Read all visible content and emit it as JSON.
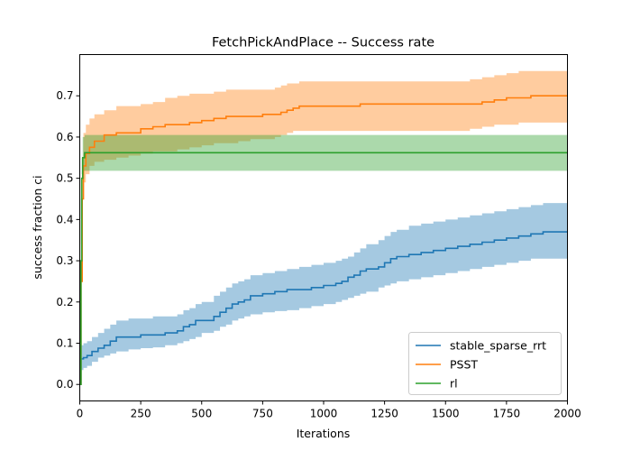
{
  "chart_data": {
    "type": "line",
    "title": "FetchPickAndPlace -- Success rate",
    "xlabel": "Iterations",
    "ylabel": "success fraction ci",
    "xlim": [
      0,
      2000
    ],
    "ylim": [
      -0.04,
      0.8
    ],
    "xticks": [
      0,
      250,
      500,
      750,
      1000,
      1250,
      1500,
      1750,
      2000
    ],
    "xtick_labels": [
      "0",
      "250",
      "500",
      "750",
      "1000",
      "1250",
      "1500",
      "1750",
      "2000"
    ],
    "yticks": [
      0.0,
      0.1,
      0.2,
      0.3,
      0.4,
      0.5,
      0.6,
      0.7
    ],
    "ytick_labels": [
      "0.0",
      "0.1",
      "0.2",
      "0.3",
      "0.4",
      "0.5",
      "0.6",
      "0.7"
    ],
    "grid": false,
    "legend_position": "lower-right",
    "series": [
      {
        "name": "stable_sparse_rrt",
        "color": "#1f77b4",
        "x": [
          0,
          5,
          15,
          30,
          50,
          75,
          100,
          125,
          150,
          200,
          250,
          300,
          350,
          400,
          425,
          450,
          475,
          500,
          550,
          575,
          600,
          625,
          650,
          675,
          700,
          750,
          800,
          850,
          900,
          950,
          1000,
          1050,
          1075,
          1100,
          1125,
          1150,
          1175,
          1225,
          1250,
          1275,
          1300,
          1350,
          1400,
          1450,
          1500,
          1550,
          1600,
          1650,
          1700,
          1750,
          1800,
          1850,
          1900,
          2000
        ],
        "y": [
          0.0,
          0.062,
          0.065,
          0.07,
          0.08,
          0.088,
          0.095,
          0.105,
          0.115,
          0.115,
          0.12,
          0.12,
          0.125,
          0.13,
          0.14,
          0.145,
          0.155,
          0.155,
          0.165,
          0.175,
          0.185,
          0.195,
          0.2,
          0.205,
          0.215,
          0.22,
          0.225,
          0.23,
          0.23,
          0.235,
          0.24,
          0.245,
          0.25,
          0.26,
          0.265,
          0.275,
          0.28,
          0.285,
          0.295,
          0.305,
          0.31,
          0.315,
          0.32,
          0.325,
          0.33,
          0.335,
          0.34,
          0.345,
          0.35,
          0.355,
          0.36,
          0.365,
          0.37,
          0.37
        ],
        "lower": [
          0.0,
          0.035,
          0.035,
          0.04,
          0.045,
          0.055,
          0.065,
          0.07,
          0.075,
          0.08,
          0.085,
          0.088,
          0.09,
          0.095,
          0.1,
          0.105,
          0.11,
          0.115,
          0.125,
          0.13,
          0.14,
          0.145,
          0.155,
          0.16,
          0.165,
          0.17,
          0.175,
          0.178,
          0.18,
          0.185,
          0.19,
          0.195,
          0.2,
          0.205,
          0.21,
          0.215,
          0.22,
          0.225,
          0.235,
          0.24,
          0.245,
          0.25,
          0.255,
          0.26,
          0.265,
          0.27,
          0.275,
          0.28,
          0.285,
          0.29,
          0.295,
          0.3,
          0.305,
          0.305
        ],
        "upper": [
          0.0,
          0.095,
          0.1,
          0.105,
          0.115,
          0.125,
          0.135,
          0.145,
          0.155,
          0.16,
          0.16,
          0.165,
          0.165,
          0.17,
          0.18,
          0.185,
          0.195,
          0.2,
          0.215,
          0.225,
          0.235,
          0.245,
          0.25,
          0.255,
          0.265,
          0.27,
          0.275,
          0.28,
          0.285,
          0.29,
          0.295,
          0.3,
          0.305,
          0.31,
          0.32,
          0.33,
          0.34,
          0.35,
          0.36,
          0.37,
          0.375,
          0.385,
          0.39,
          0.395,
          0.4,
          0.405,
          0.41,
          0.415,
          0.42,
          0.425,
          0.43,
          0.435,
          0.44,
          0.44
        ]
      },
      {
        "name": "PSST",
        "color": "#ff7f0e",
        "x": [
          0,
          5,
          10,
          15,
          25,
          40,
          60,
          100,
          150,
          200,
          250,
          300,
          350,
          400,
          450,
          500,
          550,
          600,
          650,
          700,
          750,
          800,
          825,
          850,
          875,
          900,
          950,
          1000,
          1100,
          1150,
          1200,
          1300,
          1400,
          1500,
          1600,
          1650,
          1700,
          1750,
          1800,
          1850,
          1900,
          2000
        ],
        "y": [
          0.0,
          0.25,
          0.45,
          0.53,
          0.56,
          0.575,
          0.59,
          0.605,
          0.61,
          0.61,
          0.62,
          0.625,
          0.63,
          0.63,
          0.635,
          0.64,
          0.645,
          0.65,
          0.65,
          0.65,
          0.655,
          0.655,
          0.66,
          0.665,
          0.67,
          0.675,
          0.675,
          0.675,
          0.675,
          0.68,
          0.68,
          0.68,
          0.68,
          0.68,
          0.68,
          0.685,
          0.69,
          0.695,
          0.695,
          0.7,
          0.7,
          0.7
        ],
        "lower": [
          0.0,
          0.15,
          0.34,
          0.45,
          0.49,
          0.51,
          0.53,
          0.54,
          0.545,
          0.55,
          0.555,
          0.56,
          0.565,
          0.565,
          0.57,
          0.575,
          0.58,
          0.585,
          0.585,
          0.59,
          0.595,
          0.595,
          0.6,
          0.605,
          0.61,
          0.615,
          0.615,
          0.615,
          0.615,
          0.615,
          0.615,
          0.615,
          0.615,
          0.615,
          0.615,
          0.62,
          0.625,
          0.63,
          0.63,
          0.635,
          0.635,
          0.635
        ],
        "upper": [
          0.0,
          0.35,
          0.55,
          0.61,
          0.63,
          0.645,
          0.655,
          0.665,
          0.675,
          0.675,
          0.68,
          0.685,
          0.695,
          0.7,
          0.705,
          0.705,
          0.71,
          0.715,
          0.715,
          0.715,
          0.715,
          0.72,
          0.725,
          0.73,
          0.73,
          0.735,
          0.735,
          0.735,
          0.735,
          0.735,
          0.735,
          0.735,
          0.735,
          0.735,
          0.74,
          0.745,
          0.75,
          0.755,
          0.76,
          0.76,
          0.76,
          0.76
        ]
      },
      {
        "name": "rl",
        "color": "#2ca02c",
        "x": [
          0,
          5,
          8,
          12,
          20,
          2000
        ],
        "y": [
          0.0,
          0.3,
          0.5,
          0.55,
          0.562,
          0.562
        ],
        "lower": [
          0.0,
          0.25,
          0.45,
          0.51,
          0.518,
          0.518
        ],
        "upper": [
          0.0,
          0.35,
          0.55,
          0.6,
          0.605,
          0.605
        ]
      }
    ]
  }
}
